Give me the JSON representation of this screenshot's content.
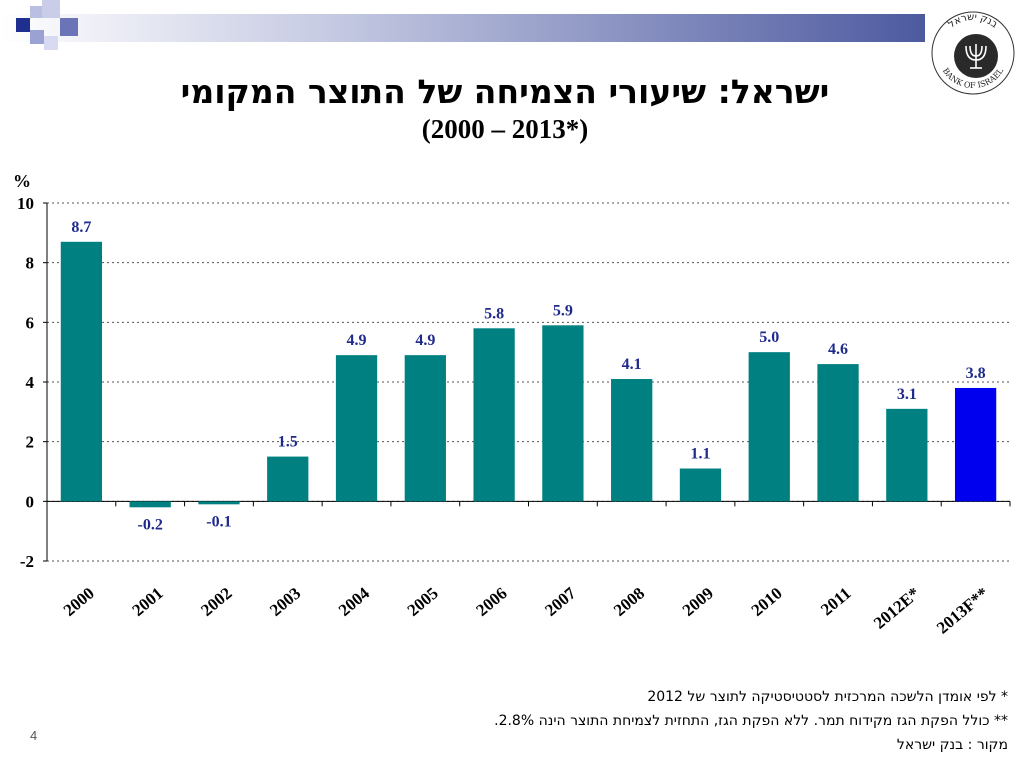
{
  "colors": {
    "bar": "#008080",
    "bar_highlight": "#0000ee",
    "value_label": "#1f2a8c",
    "header_band_start": "#ffffff",
    "header_band_end": "#4d5aa0"
  },
  "header": {
    "title": "ישראל: שיעורי הצמיחה של התוצר המקומי",
    "subtitle": "(2000 – 2013*)"
  },
  "logo": {
    "icon": "bank-of-israel-menorah-seal",
    "text_upper": "בנק ישראל",
    "text_lower": "BANK OF ISRAEL"
  },
  "chart_data": {
    "type": "bar",
    "ylabel": "%",
    "ylim": [
      -2,
      10
    ],
    "yticks": [
      10,
      8,
      6,
      4,
      2,
      0,
      -2
    ],
    "grid": true,
    "categories": [
      "2000",
      "2001",
      "2002",
      "2003",
      "2004",
      "2005",
      "2006",
      "2007",
      "2008",
      "2009",
      "2010",
      "2011",
      "2012E*",
      "2013F**"
    ],
    "values": [
      8.7,
      -0.2,
      -0.1,
      1.5,
      4.9,
      4.9,
      5.8,
      5.9,
      4.1,
      1.1,
      5.0,
      4.6,
      3.1,
      3.8
    ],
    "value_labels": [
      "8.7",
      "-0.2",
      "-0.1",
      "1.5",
      "4.9",
      "4.9",
      "5.8",
      "5.9",
      "4.1",
      "1.1",
      "5.0",
      "4.6",
      "3.1",
      "3.8"
    ],
    "highlight_index": 13
  },
  "notes": [
    "* לפי אומדן הלשכה המרכזית לסטטיסטיקה לתוצר של 2012",
    "** כולל הפקת הגז מקידוח תמר. ללא הפקת הגז, התחזית לצמיחת התוצר הינה 2.8%.",
    "מקור : בנק ישראל"
  ],
  "page_number": "4"
}
